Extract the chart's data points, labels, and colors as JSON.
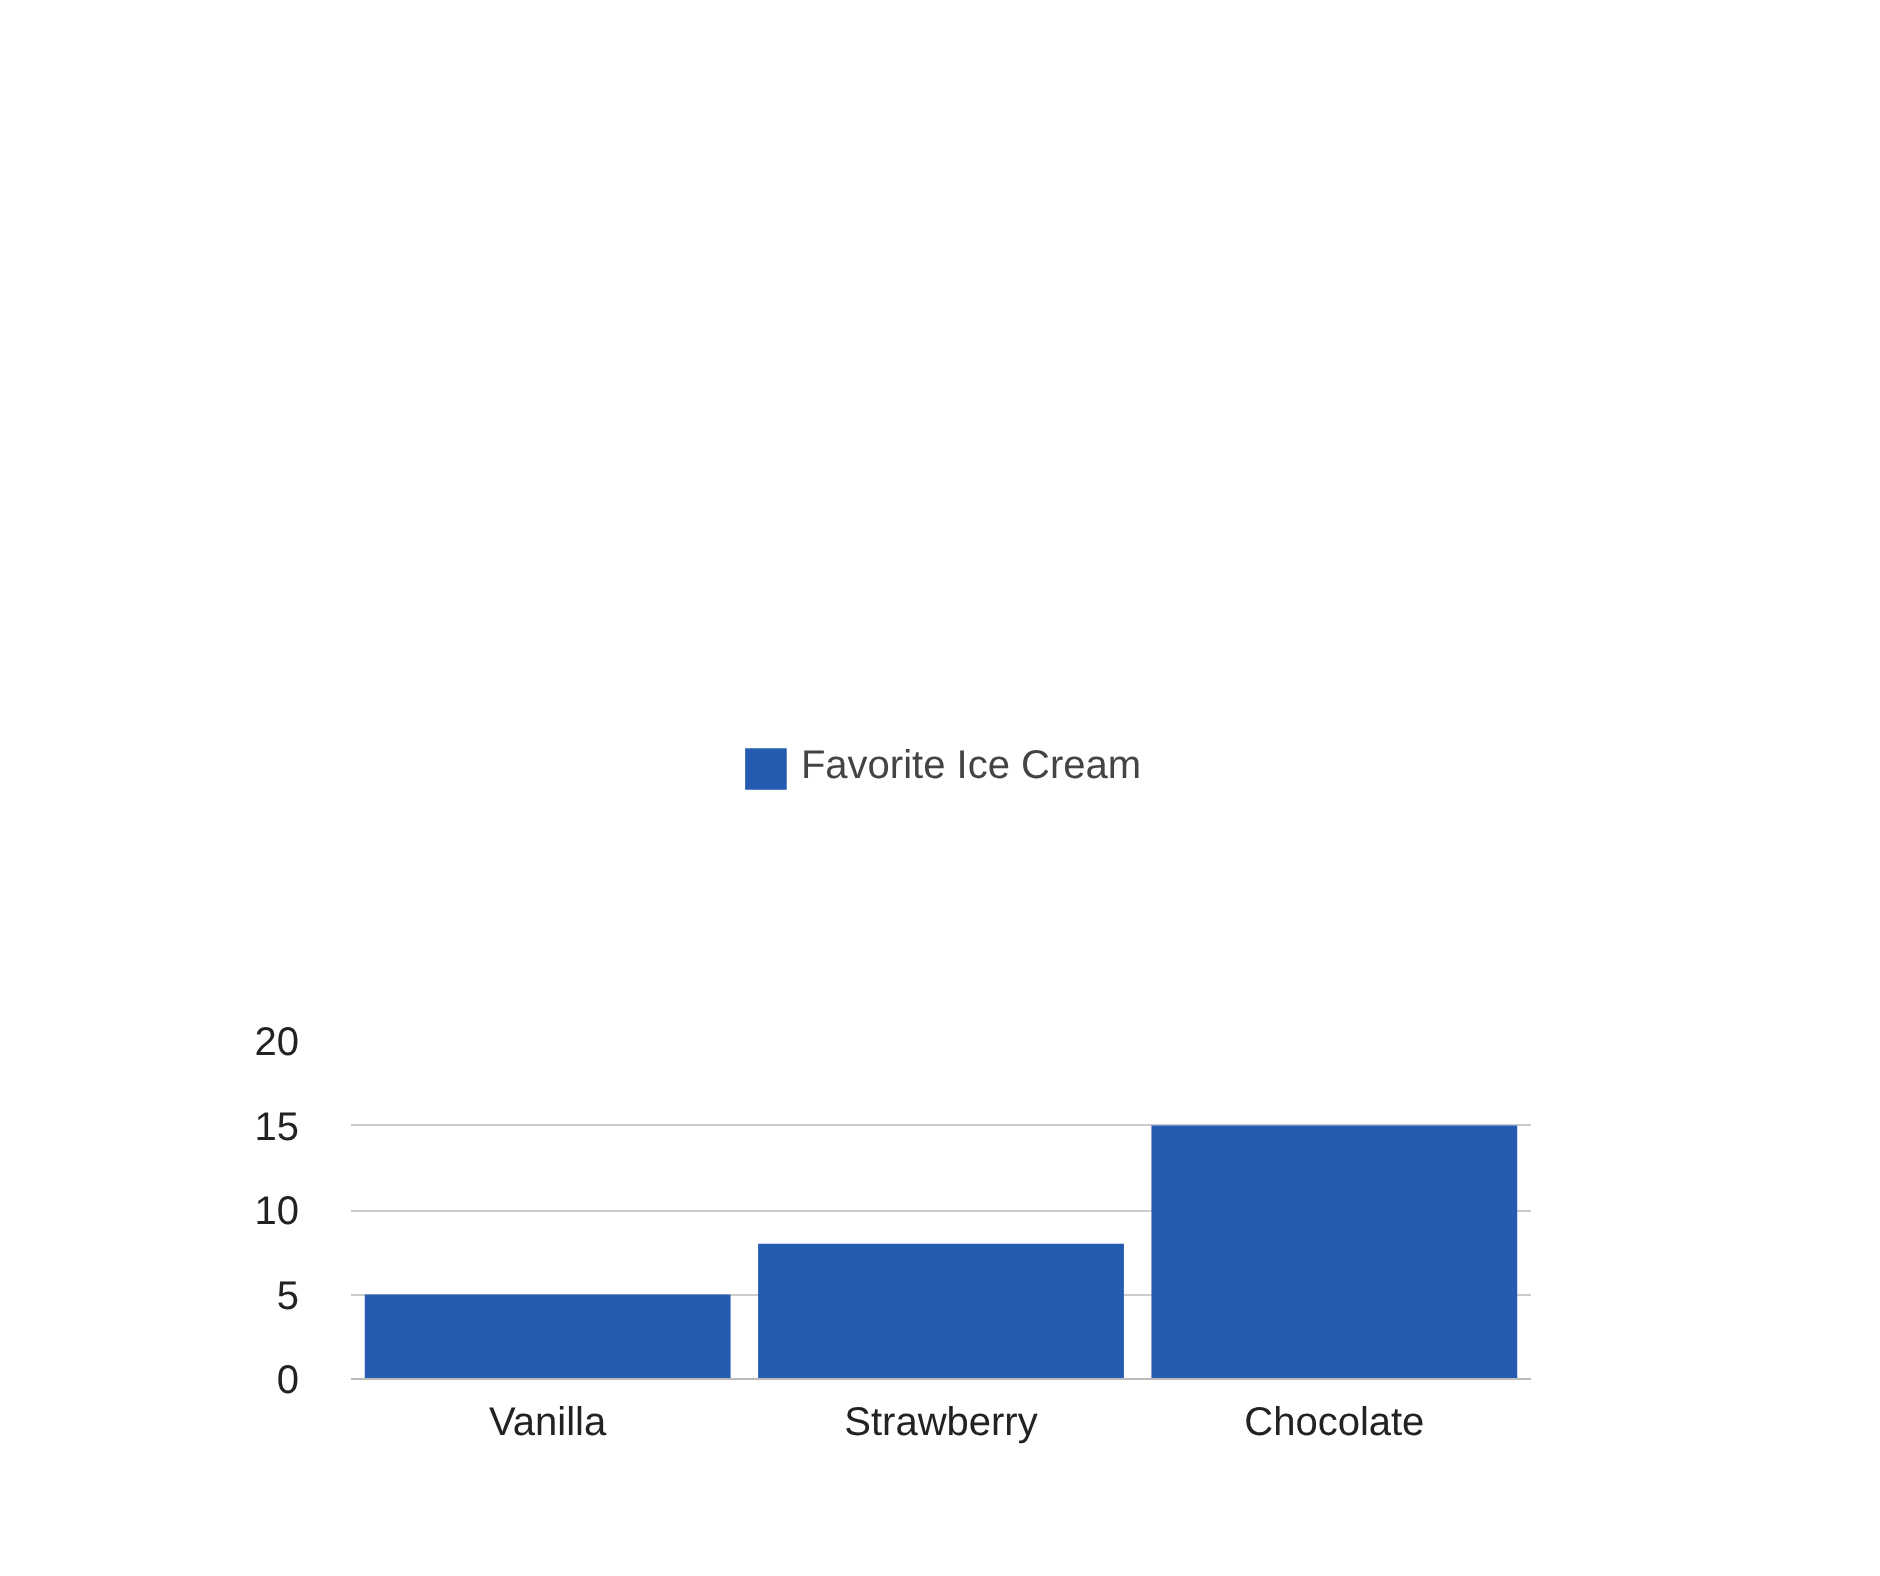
{
  "chart_data": {
    "type": "bar",
    "categories": [
      "Vanilla",
      "Strawberry",
      "Chocolate"
    ],
    "series": [
      {
        "name": "Favorite Ice Cream",
        "color": "#255bb0",
        "values": [
          5,
          8,
          15
        ]
      }
    ],
    "ylim": [
      0,
      20
    ],
    "yticks": [
      0,
      5,
      10,
      15,
      20
    ],
    "grid": "y",
    "legend": "top"
  }
}
